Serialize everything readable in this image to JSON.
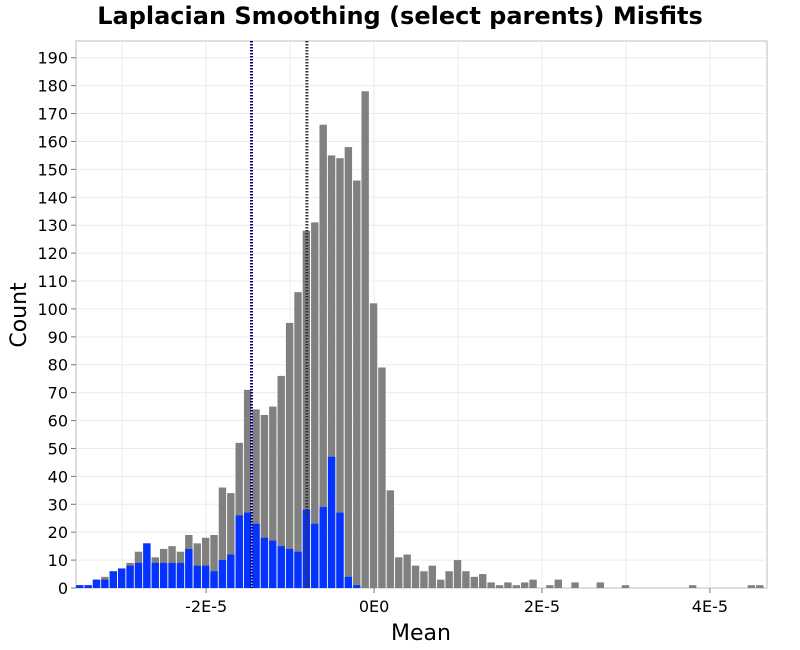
{
  "chart_data": {
    "type": "bar",
    "title": "Laplacian Smoothing (select parents) Misfits",
    "xlabel": "Mean",
    "ylabel": "Count",
    "xlim": [
      -3.55e-05,
      4.68e-05
    ],
    "ylim": [
      0,
      196
    ],
    "grid": true,
    "bin_start": -3.55e-05,
    "bin_width": 1e-06,
    "x_ticks": [
      {
        "value": -2e-05,
        "label": "-2E-5"
      },
      {
        "value": 0,
        "label": "0E0"
      },
      {
        "value": 2e-05,
        "label": "2E-5"
      },
      {
        "value": 4e-05,
        "label": "4E-5"
      }
    ],
    "y_ticks": [
      0,
      10,
      20,
      30,
      40,
      50,
      60,
      70,
      80,
      90,
      100,
      110,
      120,
      130,
      140,
      150,
      160,
      170,
      180,
      190
    ],
    "series": [
      {
        "color": "#808080",
        "values": [
          1,
          1,
          3,
          4,
          6,
          7,
          9,
          13,
          16,
          11,
          14,
          15,
          13,
          19,
          16,
          18,
          19,
          36,
          34,
          52,
          71,
          64,
          62,
          65,
          76,
          95,
          106,
          128,
          131,
          166,
          155,
          154,
          158,
          146,
          178,
          102,
          79,
          35,
          11,
          12,
          8,
          6,
          8,
          3,
          6,
          10,
          6,
          4,
          5,
          2,
          1,
          2,
          1,
          2,
          3,
          0,
          1,
          3,
          0,
          2,
          0,
          0,
          2,
          0,
          0,
          1,
          0,
          0,
          0,
          0,
          0,
          0,
          0,
          1,
          0,
          0,
          0,
          0,
          0,
          0,
          1,
          1
        ]
      },
      {
        "color": "#0433ff",
        "values": [
          1,
          1,
          3,
          3,
          6,
          7,
          8,
          9,
          16,
          9,
          9,
          9,
          9,
          14,
          8,
          8,
          6,
          10,
          12,
          26,
          27,
          23,
          18,
          17,
          15,
          14,
          13,
          28,
          23,
          29,
          47,
          27,
          4,
          1,
          0,
          0,
          0,
          0,
          0,
          0,
          0,
          0,
          0,
          0,
          0,
          0,
          0,
          0,
          0,
          0,
          0,
          0,
          0,
          0,
          0,
          0,
          0,
          0,
          0,
          0,
          0,
          0,
          0,
          0,
          0,
          0,
          0,
          0,
          0,
          0,
          0,
          0,
          0,
          0,
          0,
          0,
          0,
          0,
          0,
          0,
          0,
          0
        ]
      }
    ],
    "reference_lines": [
      {
        "x": -1.46e-05,
        "color": "#000080"
      },
      {
        "x": -8e-06,
        "color": "#333333"
      }
    ]
  }
}
